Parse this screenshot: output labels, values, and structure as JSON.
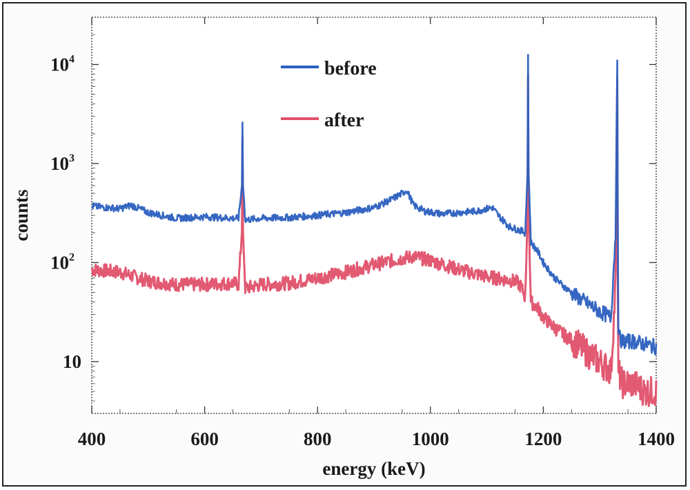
{
  "chart_data": {
    "type": "line",
    "xlabel": "energy (keV)",
    "ylabel": "counts",
    "xlim": [
      400,
      1400
    ],
    "ylim": [
      3,
      30000
    ],
    "yscale": "log",
    "xticks": [
      "400",
      "600",
      "800",
      "1000",
      "1200",
      "1400"
    ],
    "yticks": [
      {
        "value": 10,
        "base": "10",
        "exp": ""
      },
      {
        "value": 100,
        "base": "10",
        "exp": "2"
      },
      {
        "value": 1000,
        "base": "10",
        "exp": "3"
      },
      {
        "value": 10000,
        "base": "10",
        "exp": "4"
      }
    ],
    "legend_position": "top-center",
    "grid": false,
    "series": [
      {
        "name": "before",
        "color": "#2a5fbf",
        "x": [
          400,
          450,
          470,
          500,
          550,
          600,
          650,
          660,
          666,
          667,
          668,
          672,
          700,
          750,
          800,
          850,
          900,
          930,
          950,
          958,
          970,
          990,
          1020,
          1050,
          1080,
          1100,
          1110,
          1120,
          1140,
          1160,
          1168,
          1172,
          1173,
          1174,
          1178,
          1190,
          1200,
          1220,
          1240,
          1260,
          1280,
          1300,
          1320,
          1328,
          1331,
          1332,
          1333,
          1336,
          1340,
          1360,
          1380,
          1400
        ],
        "y": [
          370,
          350,
          380,
          320,
          280,
          290,
          280,
          280,
          600,
          2600,
          600,
          270,
          280,
          285,
          300,
          320,
          360,
          430,
          500,
          540,
          380,
          330,
          310,
          320,
          330,
          350,
          360,
          300,
          230,
          210,
          200,
          800,
          12500,
          800,
          160,
          130,
          100,
          70,
          55,
          45,
          38,
          32,
          28,
          200,
          11000,
          200,
          20,
          17,
          16,
          16,
          15,
          14
        ]
      },
      {
        "name": "after",
        "color": "#e0506a",
        "x": [
          400,
          450,
          500,
          550,
          600,
          650,
          660,
          666,
          667,
          668,
          672,
          700,
          750,
          800,
          850,
          900,
          950,
          970,
          1000,
          1050,
          1100,
          1150,
          1160,
          1168,
          1172,
          1173,
          1174,
          1178,
          1190,
          1200,
          1220,
          1240,
          1260,
          1280,
          1300,
          1320,
          1328,
          1331,
          1332,
          1333,
          1336,
          1340,
          1360,
          1380,
          1400
        ],
        "y": [
          85,
          80,
          65,
          60,
          60,
          62,
          60,
          200,
          1800,
          200,
          55,
          60,
          62,
          70,
          80,
          95,
          110,
          115,
          105,
          85,
          72,
          65,
          58,
          45,
          300,
          7800,
          300,
          40,
          35,
          28,
          22,
          18,
          15,
          12,
          10,
          8,
          60,
          7000,
          60,
          8,
          7,
          6,
          6,
          5,
          5
        ]
      }
    ]
  }
}
